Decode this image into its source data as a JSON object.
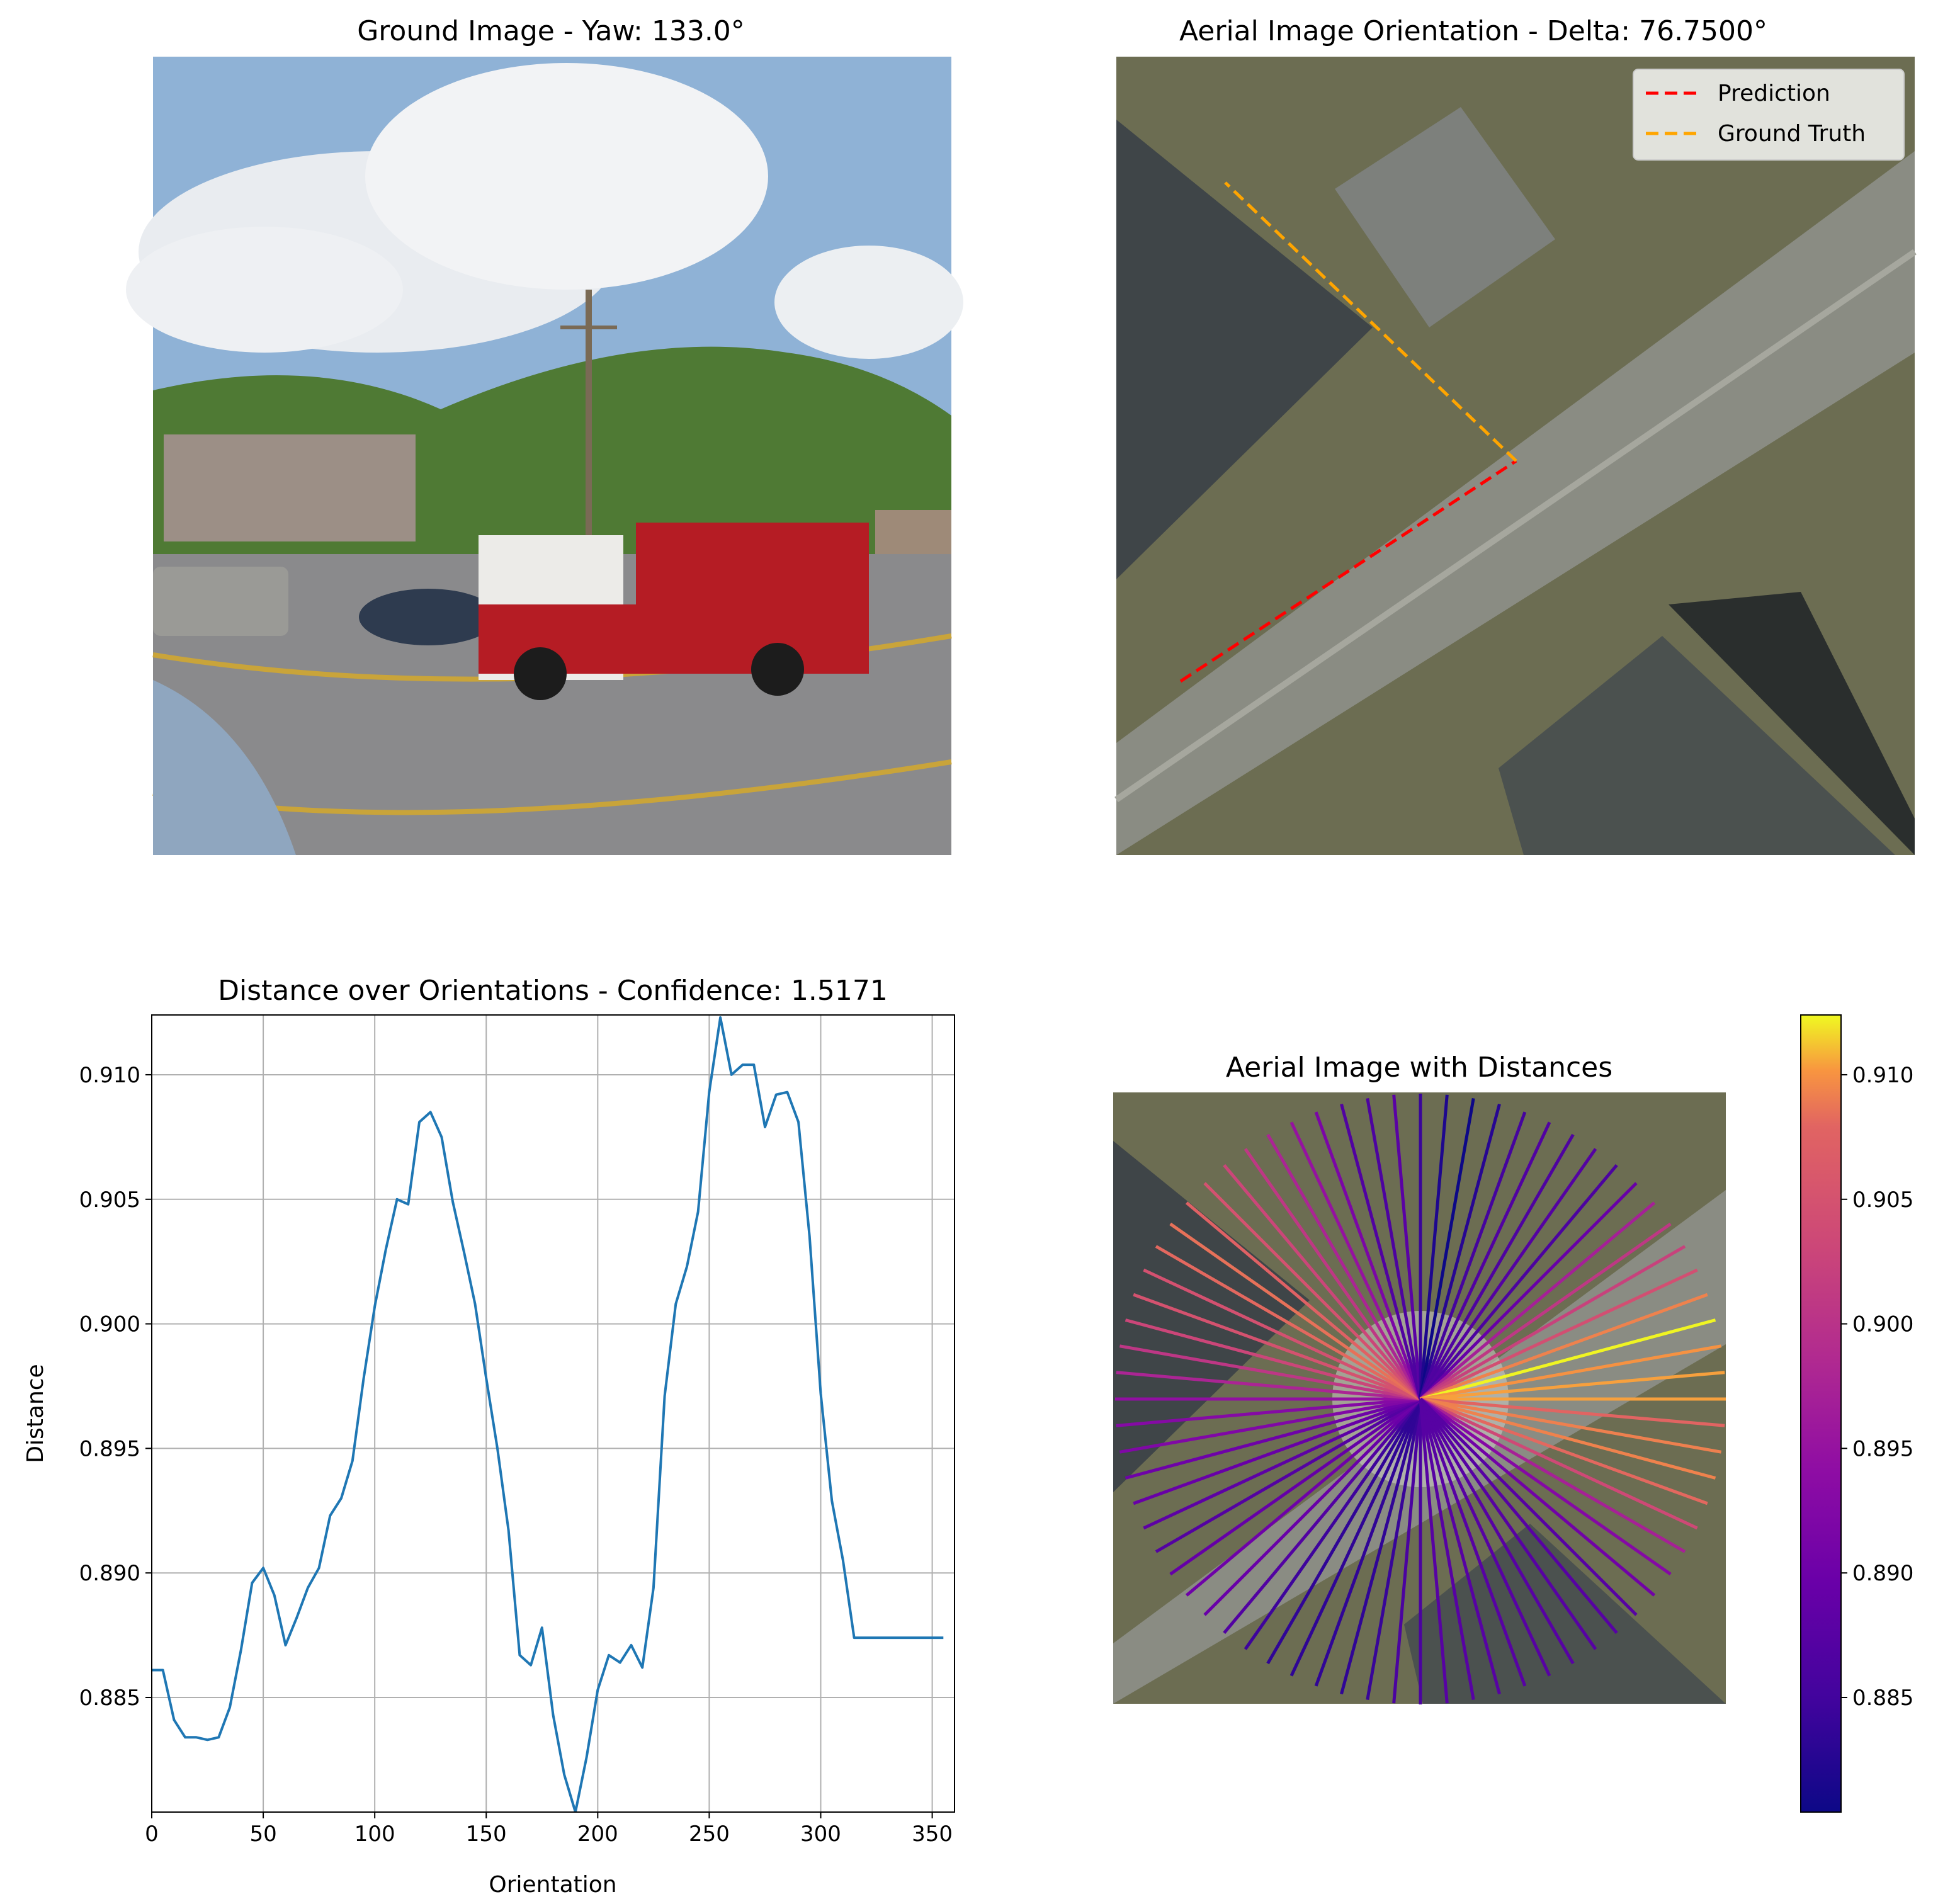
{
  "chart_data": [
    {
      "panel": "ground-image",
      "type": "image",
      "title": "Ground Image - Yaw: 133.0°",
      "colors": {
        "sky": "#8fb2d6",
        "cloud": "#f2f3f5",
        "trees": "#4f7a34",
        "road": "#8a8a8c",
        "truck": "#b51c24",
        "building": "#9c8f86"
      }
    },
    {
      "panel": "aerial-orientation",
      "type": "line",
      "title": "Aerial Image Orientation - Delta: 76.7500°",
      "series": [
        {
          "name": "Prediction",
          "color": "#ff0000",
          "style": "dashed"
        },
        {
          "name": "Ground Truth",
          "color": "#ffa500",
          "style": "dashed"
        }
      ],
      "legend": "top-right"
    },
    {
      "panel": "distance-over-orientations",
      "type": "line",
      "title": "Distance over Orientations - Confidence: 1.5171",
      "xlabel": "Orientation",
      "ylabel": "Distance",
      "xlim": [
        0,
        360
      ],
      "ylim": [
        0.8804,
        0.9124
      ],
      "xticks": [
        "0",
        "50",
        "100",
        "150",
        "200",
        "250",
        "300",
        "350"
      ],
      "yticks": [
        "0.885",
        "0.890",
        "0.895",
        "0.900",
        "0.905",
        "0.910"
      ],
      "grid": true,
      "color": "#1f77b4",
      "x": [
        0,
        5,
        10,
        15,
        20,
        25,
        30,
        35,
        40,
        45,
        50,
        55,
        60,
        65,
        70,
        75,
        80,
        85,
        90,
        95,
        100,
        105,
        110,
        115,
        120,
        125,
        130,
        135,
        140,
        145,
        150,
        155,
        160,
        165,
        170,
        175,
        180,
        185,
        190,
        195,
        200,
        205,
        210,
        215,
        220,
        225,
        230,
        235,
        240,
        245,
        250,
        255,
        260,
        265,
        270,
        275,
        280,
        285,
        290,
        295,
        300,
        305,
        310,
        315,
        320,
        325,
        330,
        335,
        340,
        345,
        350,
        355
      ],
      "y": [
        0.8861,
        0.8861,
        0.8841,
        0.8834,
        0.8834,
        0.8833,
        0.8834,
        0.8846,
        0.8869,
        0.8896,
        0.8902,
        0.8891,
        0.8871,
        0.8882,
        0.8894,
        0.8902,
        0.8923,
        0.893,
        0.8945,
        0.8978,
        0.9007,
        0.903,
        0.905,
        0.9048,
        0.9081,
        0.9085,
        0.9075,
        0.9049,
        0.9029,
        0.9008,
        0.8978,
        0.895,
        0.8917,
        0.8867,
        0.8863,
        0.8878,
        0.8843,
        0.8819,
        0.8804,
        0.8826,
        0.8853,
        0.8867,
        0.8864,
        0.8871,
        0.8862,
        0.8894,
        0.8971,
        0.9008,
        0.9023,
        0.9045,
        0.9093,
        0.9123,
        0.91,
        0.9104,
        0.9104,
        0.9079,
        0.9092,
        0.9093,
        0.9081,
        0.9035,
        0.8972,
        0.8929,
        0.8905,
        0.8874,
        0.8874,
        0.8874,
        0.8874,
        0.8874,
        0.8874,
        0.8874,
        0.8874,
        0.8874
      ]
    },
    {
      "panel": "aerial-distances",
      "type": "heatmap",
      "title": "Aerial Image with Distances",
      "colormap": "plasma",
      "colorbar_ticks": [
        "0.885",
        "0.890",
        "0.895",
        "0.900",
        "0.905",
        "0.910"
      ],
      "clim": [
        0.8804,
        0.9124
      ]
    }
  ]
}
